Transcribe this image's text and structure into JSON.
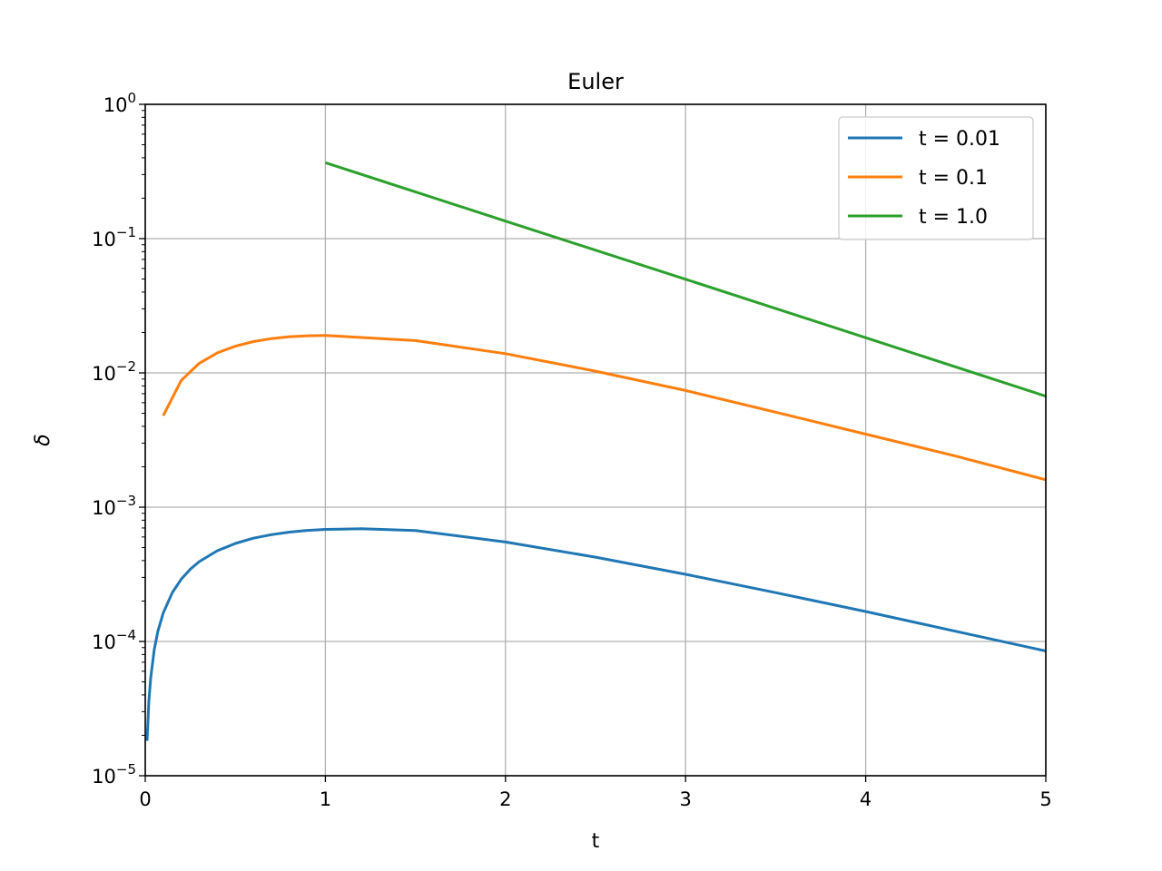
{
  "chart_data": {
    "type": "line",
    "title": "Euler",
    "xlabel": "t",
    "ylabel": "δ",
    "xlim": [
      0,
      5
    ],
    "ylim": [
      1e-05,
      1
    ],
    "yscale": "log",
    "grid": true,
    "legend_position": "top-right",
    "x_ticks": [
      "0",
      "1",
      "2",
      "3",
      "4",
      "5"
    ],
    "y_ticks": [
      {
        "base": "10",
        "exp": "−5"
      },
      {
        "base": "10",
        "exp": "−4"
      },
      {
        "base": "10",
        "exp": "−3"
      },
      {
        "base": "10",
        "exp": "−2"
      },
      {
        "base": "10",
        "exp": "−1"
      },
      {
        "base": "10",
        "exp": "0"
      }
    ],
    "series": [
      {
        "name": "t = 0.01",
        "color": "#1f77b4",
        "x": [
          0.01,
          0.02,
          0.03,
          0.05,
          0.07,
          0.1,
          0.15,
          0.2,
          0.25,
          0.3,
          0.4,
          0.5,
          0.6,
          0.7,
          0.8,
          0.9,
          1.0,
          1.2,
          1.5,
          2.0,
          2.5,
          3.0,
          3.5,
          4.0,
          4.5,
          5.0
        ],
        "y": [
          1.82e-05,
          3.6e-05,
          5.34e-05,
          8.69e-05,
          0.000119,
          0.000163,
          0.000231,
          0.000291,
          0.000345,
          0.000393,
          0.000474,
          0.000537,
          0.000587,
          0.000624,
          0.000652,
          0.000671,
          0.000683,
          0.000691,
          0.00067,
          0.00055,
          0.000424,
          0.000316,
          0.000231,
          0.000167,
          0.000119,
          8.49e-05
        ]
      },
      {
        "name": "t = 0.1",
        "color": "#ff7f0e",
        "x": [
          0.1,
          0.2,
          0.3,
          0.4,
          0.5,
          0.6,
          0.7,
          0.8,
          0.9,
          1.0,
          1.5,
          2.0,
          2.5,
          3.0,
          3.5,
          4.0,
          4.5,
          5.0
        ],
        "y": [
          0.0048,
          0.0088,
          0.0118,
          0.0141,
          0.0158,
          0.0171,
          0.018,
          0.0186,
          0.0189,
          0.019,
          0.0174,
          0.0139,
          0.0103,
          0.0074,
          0.0051,
          0.0035,
          0.0024,
          0.0016
        ]
      },
      {
        "name": "t = 1.0",
        "color": "#2ca02c",
        "x": [
          1.0,
          2.0,
          3.0,
          4.0,
          5.0
        ],
        "y": [
          0.368,
          0.135,
          0.0498,
          0.0183,
          0.0067
        ]
      }
    ]
  }
}
